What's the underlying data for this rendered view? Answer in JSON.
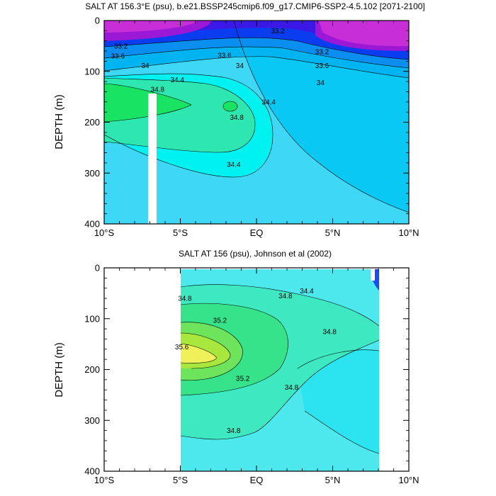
{
  "chart_data": [
    {
      "type": "heatmap",
      "title": "SALT AT 156.3°E (psu), b.e21.BSSP245cmip6.f09_g17.CMIP6-SSP2-4.5.102 [2071-2100]",
      "xlabel": "",
      "ylabel": "DEPTH (m)",
      "x_ticks": [
        "10°S",
        "5°S",
        "EQ",
        "5°N",
        "10°N"
      ],
      "y_ticks": [
        "0",
        "100",
        "200",
        "300",
        "400"
      ],
      "xlim": [
        -10,
        10
      ],
      "ylim": [
        400,
        0
      ],
      "contour_labels": [
        {
          "lat": 1.4,
          "depth": 45,
          "text": "33.2"
        },
        {
          "lat": -8.9,
          "depth": 100,
          "text": "33.2"
        },
        {
          "lat": 4.3,
          "depth": 120,
          "text": "33.2"
        },
        {
          "lat": -9.1,
          "depth": 135,
          "text": "33.6"
        },
        {
          "lat": -2.1,
          "depth": 133,
          "text": "33.6"
        },
        {
          "lat": 4.3,
          "depth": 170,
          "text": "33.6"
        },
        {
          "lat": -7.3,
          "depth": 170,
          "text": "34"
        },
        {
          "lat": -1.1,
          "depth": 170,
          "text": "34"
        },
        {
          "lat": 4.2,
          "depth": 230,
          "text": "34"
        },
        {
          "lat": -5.2,
          "depth": 220,
          "text": "34.4"
        },
        {
          "lat": 0.8,
          "depth": 300,
          "text": "34.4"
        },
        {
          "lat": -1.5,
          "depth": 523,
          "text": "34.4"
        },
        {
          "lat": -6.5,
          "depth": 255,
          "text": "34.8"
        },
        {
          "lat": -1.3,
          "depth": 355,
          "text": "34.8"
        }
      ]
    },
    {
      "type": "heatmap",
      "title": "SALT AT 156 (psu), Johnson et al (2002)",
      "xlabel": "",
      "ylabel": "DEPTH (m)",
      "x_ticks": [
        "10°S",
        "5°S",
        "EQ",
        "5°N",
        "10°N"
      ],
      "y_ticks": [
        "0",
        "100",
        "200",
        "300",
        "400"
      ],
      "xlim": [
        -10,
        10
      ],
      "ylim": [
        400,
        0
      ],
      "data_lat_range": [
        -5,
        8
      ],
      "contour_labels": [
        {
          "lat": -4.7,
          "depth": 65,
          "text": "34.8"
        },
        {
          "lat": 1.9,
          "depth": 60,
          "text": "34.8"
        },
        {
          "lat": 3.3,
          "depth": 50,
          "text": "34.4"
        },
        {
          "lat": -2.4,
          "depth": 108,
          "text": "35.2"
        },
        {
          "lat": -4.9,
          "depth": 160,
          "text": "35.6"
        },
        {
          "lat": 4.8,
          "depth": 130,
          "text": "34.8"
        },
        {
          "lat": -0.9,
          "depth": 222,
          "text": "35.2"
        },
        {
          "lat": 2.3,
          "depth": 240,
          "text": "34.8"
        },
        {
          "lat": -1.5,
          "depth": 325,
          "text": "34.8"
        }
      ]
    }
  ]
}
